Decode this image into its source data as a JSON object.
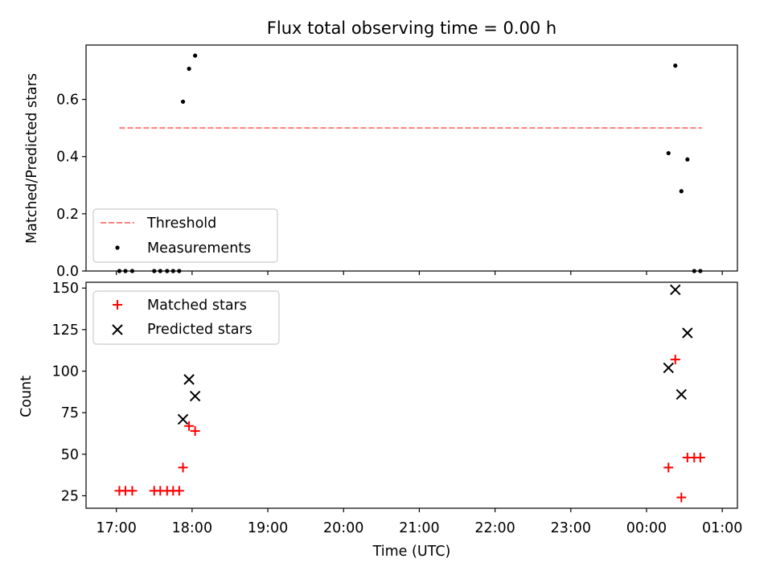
{
  "figure": {
    "title": "Flux total observing time = 0.00 h",
    "xlabel": "Time (UTC)",
    "x_tick_labels": [
      "17:00",
      "18:00",
      "19:00",
      "20:00",
      "21:00",
      "22:00",
      "23:00",
      "00:00",
      "01:00"
    ]
  },
  "colors": {
    "threshold": "#ff7f7f",
    "measurements": "#000000",
    "matched": "#ff0000",
    "predicted": "#000000"
  },
  "chart_data": [
    {
      "type": "scatter",
      "panel": "top",
      "title": "Flux total observing time = 0.00 h",
      "xlabel": "",
      "ylabel": "Matched/Predicted stars",
      "x_unit": "hours since 17:00 UTC",
      "xlim": [
        16.6,
        25.2
      ],
      "ylim": [
        0,
        0.79
      ],
      "y_ticks": [
        0.0,
        0.2,
        0.4,
        0.6
      ],
      "y_tick_labels": [
        "0.0",
        "0.2",
        "0.4",
        "0.6"
      ],
      "legend_position": "lower-left",
      "threshold": {
        "name": "Threshold",
        "value": 0.5,
        "x_range": [
          17.04,
          24.73
        ],
        "style": "dashed"
      },
      "series": [
        {
          "name": "Measurements",
          "marker": "dot",
          "points": [
            [
              17.04,
              0.0
            ],
            [
              17.12,
              0.0
            ],
            [
              17.21,
              0.0
            ],
            [
              17.5,
              0.0
            ],
            [
              17.58,
              0.0
            ],
            [
              17.67,
              0.0
            ],
            [
              17.75,
              0.0
            ],
            [
              17.83,
              0.0
            ],
            [
              17.88,
              0.592
            ],
            [
              17.96,
              0.707
            ],
            [
              18.04,
              0.753
            ],
            [
              24.29,
              0.412
            ],
            [
              24.38,
              0.718
            ],
            [
              24.46,
              0.279
            ],
            [
              24.54,
              0.39
            ],
            [
              24.63,
              0.0
            ],
            [
              24.71,
              0.0
            ]
          ]
        }
      ]
    },
    {
      "type": "scatter",
      "panel": "bottom",
      "xlabel": "Time (UTC)",
      "ylabel": "Count",
      "x_unit": "hours since 17:00 UTC",
      "xlim": [
        16.6,
        25.2
      ],
      "ylim": [
        17.5,
        153.5
      ],
      "y_ticks": [
        25,
        50,
        75,
        100,
        125,
        150
      ],
      "y_tick_labels": [
        "25",
        "50",
        "75",
        "100",
        "125",
        "150"
      ],
      "legend_position": "upper-left",
      "series": [
        {
          "name": "Matched stars",
          "marker": "plus",
          "points": [
            [
              17.04,
              28
            ],
            [
              17.12,
              28
            ],
            [
              17.21,
              28
            ],
            [
              17.5,
              28
            ],
            [
              17.58,
              28
            ],
            [
              17.67,
              28
            ],
            [
              17.75,
              28
            ],
            [
              17.83,
              28
            ],
            [
              17.88,
              42
            ],
            [
              17.96,
              67
            ],
            [
              18.04,
              64
            ],
            [
              24.29,
              42
            ],
            [
              24.38,
              107
            ],
            [
              24.46,
              24
            ],
            [
              24.54,
              48
            ],
            [
              24.63,
              48
            ],
            [
              24.71,
              48
            ]
          ]
        },
        {
          "name": "Predicted stars",
          "marker": "x",
          "points": [
            [
              17.88,
              71
            ],
            [
              17.96,
              95
            ],
            [
              18.04,
              85
            ],
            [
              24.29,
              102
            ],
            [
              24.38,
              149
            ],
            [
              24.46,
              86
            ],
            [
              24.54,
              123
            ]
          ]
        }
      ]
    }
  ]
}
